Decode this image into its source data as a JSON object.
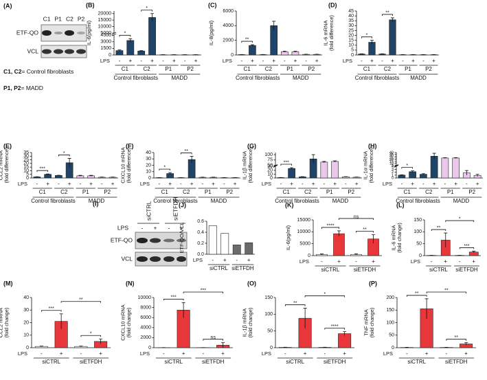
{
  "blots": [
    {
      "panel": "(A)",
      "lanes": [
        "C1",
        "P1",
        "C2",
        "P2"
      ],
      "rows": [
        "ETF-QO",
        "VCL"
      ],
      "notes": [
        [
          "C1, C2",
          "= Control fibroblasts"
        ],
        [
          "P1, P2",
          "= MADD"
        ]
      ]
    },
    {
      "panel": "(I)",
      "conditions": [
        "siCTRL",
        "siETFDH"
      ],
      "treatment": "LPS",
      "lanes": [
        "-",
        "+",
        "-",
        "+"
      ],
      "rows": [
        "ETF-QO",
        "VCL"
      ]
    }
  ],
  "chart_data": [
    {
      "panel": "(B)",
      "type": "bar",
      "ylabel": [
        "IL-6(pg/ml)"
      ],
      "xlabel": "LPS",
      "categories": [
        "-",
        "+",
        "-",
        "+",
        "-",
        "+",
        "-",
        "+"
      ],
      "groups": [
        "C1",
        "C2",
        "P1",
        "P2"
      ],
      "supergroups": [
        "Control fibroblasts",
        "MADD"
      ],
      "values": [
        1000,
        3300,
        900,
        17000,
        50,
        50,
        50,
        50
      ],
      "errors": [
        150,
        400,
        100,
        3000,
        20,
        20,
        20,
        20
      ],
      "colors": [
        "#1f4468",
        "#1f4468",
        "#1f4468",
        "#1f4468",
        "#e9c8ec",
        "#e9c8ec",
        "#e9c8ec",
        "#e9c8ec"
      ],
      "ylim": [
        0,
        22000
      ],
      "ybreak": [
        4500,
        5000
      ],
      "yticks": [
        0,
        1500,
        3000,
        4500,
        5000,
        10000,
        15000,
        20000
      ],
      "significance": [
        {
          "label": "*",
          "bars": [
            0,
            1
          ]
        },
        {
          "label": "*",
          "bars": [
            2,
            3
          ]
        }
      ]
    },
    {
      "panel": "(C)",
      "type": "bar",
      "ylabel": [
        "IL-8(pg/ml)"
      ],
      "xlabel": "LPS",
      "categories": [
        "-",
        "+",
        "-",
        "+",
        "-",
        "+",
        "-",
        "+"
      ],
      "groups": [
        "C1",
        "C2",
        "P1",
        "P2"
      ],
      "supergroups": [
        "Control fibroblasts",
        "MADD"
      ],
      "values": [
        50,
        1300,
        50,
        4000,
        450,
        450,
        80,
        80
      ],
      "errors": [
        20,
        100,
        20,
        600,
        60,
        60,
        20,
        20
      ],
      "colors": [
        "#1f4468",
        "#1f4468",
        "#1f4468",
        "#1f4468",
        "#e9c8ec",
        "#e9c8ec",
        "#e9c8ec",
        "#e9c8ec"
      ],
      "ylim": [
        0,
        6000
      ],
      "yticks": [
        0,
        2000,
        4000,
        6000
      ],
      "significance": [
        {
          "label": "**",
          "bars": [
            0,
            1
          ]
        }
      ]
    },
    {
      "panel": "(D)",
      "type": "bar",
      "ylabel": [
        "IL-6 mRNA",
        "(fold difference)"
      ],
      "xlabel": "LPS",
      "categories": [
        "-",
        "+",
        "-",
        "+",
        "-",
        "+",
        "-",
        "+"
      ],
      "groups": [
        "C1",
        "C2",
        "P1",
        "P2"
      ],
      "supergroups": [
        "Control fibroblasts",
        "MADD"
      ],
      "values": [
        1,
        13,
        1,
        36,
        0.3,
        0.3,
        0.3,
        0.3
      ],
      "errors": [
        0.2,
        2,
        0.2,
        2,
        0.1,
        0.1,
        0.1,
        0.1
      ],
      "colors": [
        "#1f4468",
        "#1f4468",
        "#1f4468",
        "#1f4468",
        "#e9c8ec",
        "#e9c8ec",
        "#e9c8ec",
        "#e9c8ec"
      ],
      "ylim": [
        0,
        45
      ],
      "yticks": [
        0,
        5,
        10,
        15,
        20,
        25,
        30,
        35,
        40,
        45
      ],
      "significance": [
        {
          "label": "*",
          "bars": [
            0,
            1
          ]
        },
        {
          "label": "**",
          "bars": [
            2,
            3
          ]
        }
      ]
    },
    {
      "panel": "(E)",
      "type": "bar",
      "ylabel": [
        "CCL2 mRNA",
        "(fold difference)"
      ],
      "xlabel": "LPS",
      "categories": [
        "-",
        "+",
        "-",
        "+",
        "-",
        "+",
        "-",
        "+"
      ],
      "groups": [
        "C1",
        "C2",
        "P1",
        "P2"
      ],
      "supergroups": [
        "Control fibroblasts",
        "MADD"
      ],
      "values": [
        1.5,
        5,
        3.5,
        21,
        3,
        3,
        1,
        1
      ],
      "errors": [
        0.3,
        0.5,
        0.3,
        6,
        0.6,
        0.6,
        0.3,
        0.3
      ],
      "colors": [
        "#1f4468",
        "#1f4468",
        "#1f4468",
        "#1f4468",
        "#e9c8ec",
        "#e9c8ec",
        "#e9c8ec",
        "#e9c8ec"
      ],
      "ylim": [
        0,
        35
      ],
      "yticks": [
        0,
        5,
        10,
        15,
        20,
        25,
        30,
        35
      ],
      "significance": [
        {
          "label": "***",
          "bars": [
            0,
            1
          ]
        },
        {
          "label": "*",
          "bars": [
            2,
            3
          ]
        }
      ]
    },
    {
      "panel": "(F)",
      "type": "bar",
      "ylabel": [
        "CXCL10 mRNA",
        "(fold difference)"
      ],
      "xlabel": "LPS",
      "categories": [
        "-",
        "+",
        "-",
        "+",
        "-",
        "+",
        "-",
        "+"
      ],
      "groups": [
        "C1",
        "C2",
        "P1",
        "P2"
      ],
      "supergroups": [
        "Control fibroblasts",
        "MADD"
      ],
      "values": [
        0.5,
        7,
        0.5,
        29,
        1,
        1,
        0.5,
        0.5
      ],
      "errors": [
        0.2,
        1.5,
        0.2,
        5,
        0.3,
        0.3,
        0.2,
        0.2
      ],
      "colors": [
        "#1f4468",
        "#1f4468",
        "#1f4468",
        "#1f4468",
        "#e9c8ec",
        "#e9c8ec",
        "#e9c8ec",
        "#e9c8ec"
      ],
      "ylim": [
        0,
        40
      ],
      "yticks": [
        0,
        10,
        20,
        30,
        40
      ],
      "significance": [
        {
          "label": "*",
          "bars": [
            0,
            1
          ]
        },
        {
          "label": "**",
          "bars": [
            2,
            3
          ]
        }
      ]
    },
    {
      "panel": "(G)",
      "type": "bar",
      "ylabel": [
        "IL-1β mRNA",
        "(fold difference)"
      ],
      "xlabel": "LPS",
      "categories": [
        "-",
        "+",
        "-",
        "+",
        "-",
        "+",
        "-",
        "+"
      ],
      "groups": [
        "C1",
        "C2",
        "P1",
        "P2"
      ],
      "supergroups": [
        "Control fibroblasts",
        "MADD"
      ],
      "values": [
        1,
        25,
        3,
        80,
        65,
        68,
        3,
        2
      ],
      "errors": [
        0.3,
        2,
        0.5,
        20,
        3,
        3,
        0.5,
        0.5
      ],
      "colors": [
        "#1f4468",
        "#1f4468",
        "#1f4468",
        "#1f4468",
        "#e9c8ec",
        "#e9c8ec",
        "#e9c8ec",
        "#e9c8ec"
      ],
      "ylim": [
        0,
        110
      ],
      "ybreak": [
        30,
        50
      ],
      "yticks": [
        0,
        10,
        20,
        30,
        50,
        75,
        100
      ],
      "significance": [
        {
          "label": "***",
          "bars": [
            0,
            1
          ]
        }
      ]
    },
    {
      "panel": "(H)",
      "type": "bar",
      "ylabel": [
        "IL-1α mRNA",
        "(fold difference)"
      ],
      "xlabel": "LPS",
      "categories": [
        "-",
        "+",
        "-",
        "+",
        "-",
        "+",
        "-",
        "+"
      ],
      "groups": [
        "C1",
        "C2",
        "P1",
        "P2"
      ],
      "supergroups": [
        "Control fibroblasts",
        "MADD"
      ],
      "values": [
        1,
        2.2,
        1.3,
        30,
        25,
        25,
        1.8,
        0.9
      ],
      "errors": [
        0.1,
        0.3,
        0.2,
        8,
        1,
        1,
        0.8,
        0.4
      ],
      "colors": [
        "#1f4468",
        "#1f4468",
        "#1f4468",
        "#1f4468",
        "#e9c8ec",
        "#e9c8ec",
        "#e9c8ec",
        "#e9c8ec"
      ],
      "ylim": [
        0,
        40
      ],
      "ybreak": [
        4,
        5
      ],
      "yticks": [
        0,
        1,
        2,
        3,
        4,
        5,
        10,
        15,
        20,
        25,
        30,
        35,
        40
      ],
      "significance": [
        {
          "label": "*",
          "bars": [
            0,
            1
          ]
        }
      ]
    },
    {
      "panel": "(J)",
      "type": "bar",
      "ylabel": [
        "ETF-QO/VCL"
      ],
      "xlabel": "LPS",
      "categories": [
        "-",
        "+",
        "-",
        "+"
      ],
      "groups": [
        "siCTRL",
        "siETFDH"
      ],
      "values": [
        0.52,
        0.38,
        0.17,
        0.21
      ],
      "colors": [
        "#ffffff",
        "#ffffff",
        "#6b6b6b",
        "#6b6b6b"
      ],
      "ylim": [
        0,
        0.6
      ],
      "yticks": [
        {
          "value": 0,
          "label": "0.0"
        },
        0.2,
        0.4,
        0.6
      ]
    },
    {
      "panel": "(K)",
      "type": "bar",
      "ylabel": [
        "IL-6(pg/ml)"
      ],
      "xlabel": "LPS",
      "categories": [
        "-",
        "+",
        "-",
        "+"
      ],
      "groups": [
        "siCTRL",
        "siETFDH"
      ],
      "values": [
        500,
        9200,
        500,
        7000
      ],
      "errors": [
        200,
        1200,
        200,
        1800
      ],
      "colors": [
        "#ffffff",
        "#e8373a",
        "#ffffff",
        "#e8373a"
      ],
      "ylim": [
        0,
        15000
      ],
      "yticks": [
        0,
        5000,
        10000,
        15000
      ],
      "significance": [
        {
          "label": "****",
          "bars": [
            0,
            1
          ]
        },
        {
          "label": "**",
          "bars": [
            2,
            3
          ]
        },
        {
          "label": "ns",
          "bars": [
            1,
            3
          ]
        }
      ]
    },
    {
      "panel": "(L)",
      "type": "bar",
      "ylabel": [
        "IL-6 mRNA",
        "(fold change)"
      ],
      "xlabel": "LPS",
      "categories": [
        "-",
        "+",
        "-",
        "+"
      ],
      "groups": [
        "siCTRL",
        "siETFDH"
      ],
      "values": [
        1,
        65,
        1,
        15
      ],
      "errors": [
        0.5,
        30,
        0.5,
        4
      ],
      "colors": [
        "#ffffff",
        "#e8373a",
        "#ffffff",
        "#e8373a"
      ],
      "ylim": [
        0,
        150
      ],
      "yticks": [
        0,
        50,
        100,
        150
      ],
      "significance": [
        {
          "label": "**",
          "bars": [
            0,
            1
          ]
        },
        {
          "label": "***",
          "bars": [
            2,
            3
          ]
        },
        {
          "label": "*",
          "bars": [
            1,
            3
          ]
        }
      ]
    },
    {
      "panel": "(M)",
      "type": "bar",
      "ylabel": [
        "CCL2 mRNA",
        "(fold change)"
      ],
      "xlabel": "LPS",
      "categories": [
        "-",
        "+",
        "-",
        "+"
      ],
      "groups": [
        "siCTRL",
        "siETFDH"
      ],
      "values": [
        1,
        21,
        1,
        5
      ],
      "errors": [
        0.3,
        6,
        0.3,
        2
      ],
      "colors": [
        "#ffffff",
        "#e8373a",
        "#ffffff",
        "#e8373a"
      ],
      "ylim": [
        0,
        40
      ],
      "yticks": [
        0,
        10,
        20,
        30,
        40
      ],
      "significance": [
        {
          "label": "***",
          "bars": [
            0,
            1
          ]
        },
        {
          "label": "*",
          "bars": [
            2,
            3
          ]
        },
        {
          "label": "**",
          "bars": [
            1,
            3
          ]
        }
      ]
    },
    {
      "panel": "(N)",
      "type": "bar",
      "ylabel": [
        "CXCL10 mRNA",
        "(fold change)"
      ],
      "xlabel": "LPS",
      "categories": [
        "-",
        "+",
        "-",
        "+"
      ],
      "groups": [
        "siCTRL",
        "siETFDH"
      ],
      "values": [
        20,
        7500,
        20,
        500
      ],
      "errors": [
        10,
        1500,
        10,
        500
      ],
      "colors": [
        "#ffffff",
        "#e8373a",
        "#ffffff",
        "#e8373a"
      ],
      "ylim": [
        0,
        10000
      ],
      "yticks": [
        0,
        2000,
        4000,
        6000,
        8000,
        10000
      ],
      "significance": [
        {
          "label": "***",
          "bars": [
            0,
            1
          ]
        },
        {
          "label": "ns",
          "bars": [
            2,
            3
          ]
        },
        {
          "label": "***",
          "bars": [
            1,
            3
          ]
        }
      ]
    },
    {
      "panel": "(O)",
      "type": "bar",
      "ylabel": [
        "IL-1β mRNA",
        "(fold change)"
      ],
      "xlabel": "LPS",
      "categories": [
        "-",
        "+",
        "-",
        "+"
      ],
      "groups": [
        "siCTRL",
        "siETFDH"
      ],
      "values": [
        1,
        88,
        1,
        42
      ],
      "errors": [
        0.5,
        30,
        0.5,
        6
      ],
      "colors": [
        "#ffffff",
        "#e8373a",
        "#ffffff",
        "#e8373a"
      ],
      "ylim": [
        0,
        150
      ],
      "yticks": [
        0,
        50,
        100,
        150
      ],
      "significance": [
        {
          "label": "**",
          "bars": [
            0,
            1
          ]
        },
        {
          "label": "****",
          "bars": [
            2,
            3
          ]
        },
        {
          "label": "*",
          "bars": [
            1,
            3
          ]
        }
      ]
    },
    {
      "panel": "(P)",
      "type": "bar",
      "ylabel": [
        "TNF mRNA",
        "(fold change)"
      ],
      "xlabel": "LPS",
      "categories": [
        "-",
        "+",
        "-",
        "+"
      ],
      "groups": [
        "siCTRL",
        "siETFDH"
      ],
      "values": [
        1,
        155,
        1,
        15
      ],
      "errors": [
        0.5,
        40,
        0.5,
        5
      ],
      "colors": [
        "#ffffff",
        "#e8373a",
        "#ffffff",
        "#e8373a"
      ],
      "ylim": [
        0,
        200
      ],
      "yticks": [
        0,
        50,
        100,
        150,
        200
      ],
      "significance": [
        {
          "label": "**",
          "bars": [
            0,
            1
          ]
        },
        {
          "label": "**",
          "bars": [
            2,
            3
          ]
        },
        {
          "label": "**",
          "bars": [
            1,
            3
          ]
        }
      ]
    }
  ]
}
